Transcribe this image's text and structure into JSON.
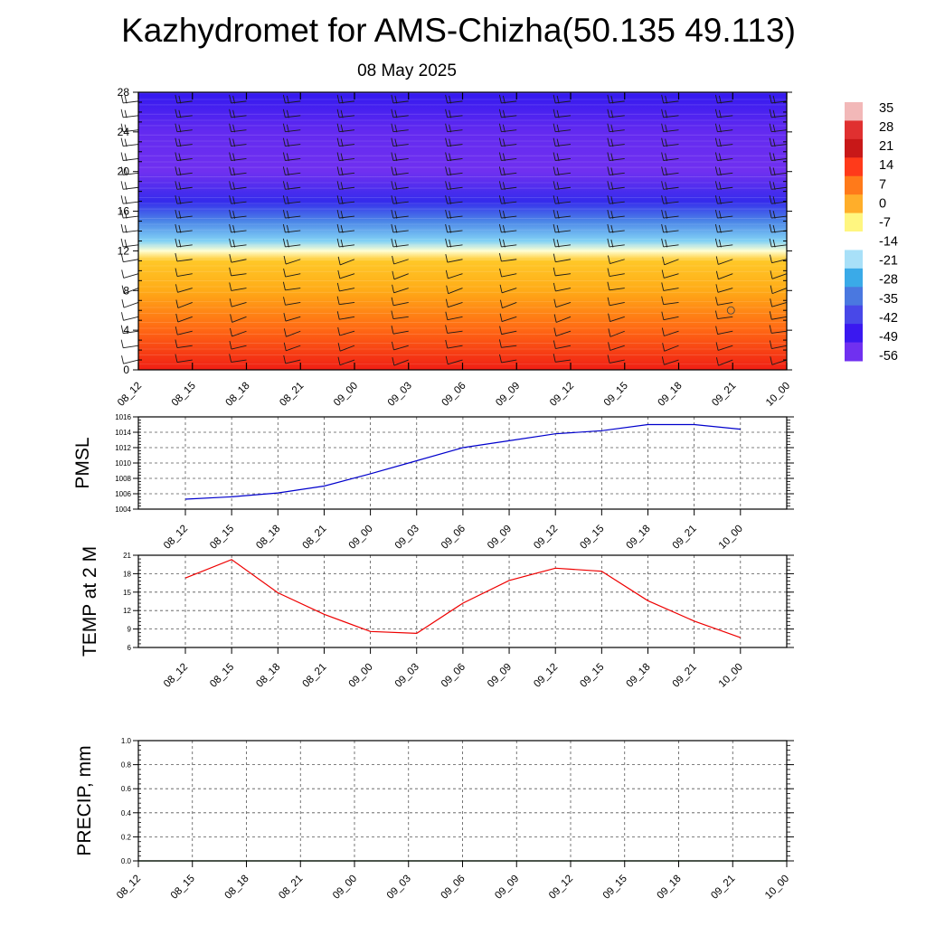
{
  "title": "Kazhydromet for AMS-Chizha(50.135 49.113)",
  "subtitle": "08 May 2025",
  "time_labels": [
    "08_12",
    "08_15",
    "08_18",
    "08_21",
    "09_00",
    "09_03",
    "09_06",
    "09_09",
    "09_12",
    "09_15",
    "09_18",
    "09_21",
    "10_00"
  ],
  "chart_data": [
    {
      "type": "heatmap",
      "name": "temperature-cross-section",
      "x": [
        "08_12",
        "08_15",
        "08_18",
        "08_21",
        "09_00",
        "09_03",
        "09_06",
        "09_09",
        "09_12",
        "09_15",
        "09_18",
        "09_21",
        "10_00"
      ],
      "ylim": [
        0,
        28
      ],
      "yticks": [
        0,
        4,
        8,
        12,
        16,
        20,
        24,
        28
      ],
      "levels": [
        0,
        4,
        8,
        11,
        12,
        13,
        15,
        17,
        20,
        24,
        28
      ],
      "temperature_profile": [
        24,
        14,
        5,
        0,
        -12,
        -24,
        -38,
        -50,
        -58,
        -57,
        -52
      ],
      "colorbar": {
        "labels": [
          "35",
          "28",
          "21",
          "14",
          "7",
          "0",
          "-7",
          "-14",
          "-21",
          "-28",
          "-35",
          "-42",
          "-49",
          "-56"
        ],
        "colors": [
          "#f2b8b8",
          "#e03030",
          "#c81818",
          "#ff3a1a",
          "#ff7a1a",
          "#ffae2a",
          "#fff680",
          "#ffffff",
          "#a8e0f8",
          "#3aaae8",
          "#4a78e0",
          "#4848e8",
          "#3a18f0",
          "#7030f0"
        ]
      },
      "wind_barbs": true
    },
    {
      "type": "line",
      "name": "pmsl",
      "ylabel": "PMSL",
      "x": [
        "08_12",
        "08_15",
        "08_18",
        "08_21",
        "09_00",
        "09_03",
        "09_06",
        "09_09",
        "09_12",
        "09_15",
        "09_18",
        "09_21",
        "10_00"
      ],
      "values": [
        1005.3,
        1005.6,
        1006.1,
        1007.0,
        1008.6,
        1010.3,
        1012.0,
        1012.9,
        1013.8,
        1014.2,
        1015.0,
        1015.0,
        1014.4
      ],
      "ylim": [
        1004,
        1016
      ],
      "yticks": [
        1004,
        1006,
        1008,
        1010,
        1012,
        1014,
        1016
      ],
      "grid": true,
      "color": "#0000cc"
    },
    {
      "type": "line",
      "name": "temp-2m",
      "ylabel": "TEMP at 2 M",
      "x": [
        "08_12",
        "08_15",
        "08_18",
        "08_21",
        "09_00",
        "09_03",
        "09_06",
        "09_09",
        "09_12",
        "09_15",
        "09_18",
        "09_21",
        "10_00"
      ],
      "values": [
        17.3,
        20.3,
        14.9,
        11.4,
        8.6,
        8.3,
        13.2,
        16.9,
        18.9,
        18.4,
        13.6,
        10.3,
        7.6
      ],
      "ylim": [
        6,
        21
      ],
      "yticks": [
        6,
        9,
        12,
        15,
        18,
        21
      ],
      "grid": true,
      "color": "#ee0000"
    },
    {
      "type": "line",
      "name": "precip",
      "ylabel": "PRECIP, mm",
      "x": [
        "08_12",
        "08_15",
        "08_18",
        "08_21",
        "09_00",
        "09_03",
        "09_06",
        "09_09",
        "09_12",
        "09_15",
        "09_18",
        "09_21",
        "10_00"
      ],
      "values": [
        0,
        0,
        0,
        0,
        0,
        0,
        0,
        0,
        0,
        0,
        0,
        0,
        0
      ],
      "ylim": [
        0,
        1.0
      ],
      "yticks": [
        "0.0",
        "0.2",
        "0.4",
        "0.6",
        "0.8",
        "1.0"
      ],
      "grid": true,
      "color": "#006400"
    }
  ]
}
